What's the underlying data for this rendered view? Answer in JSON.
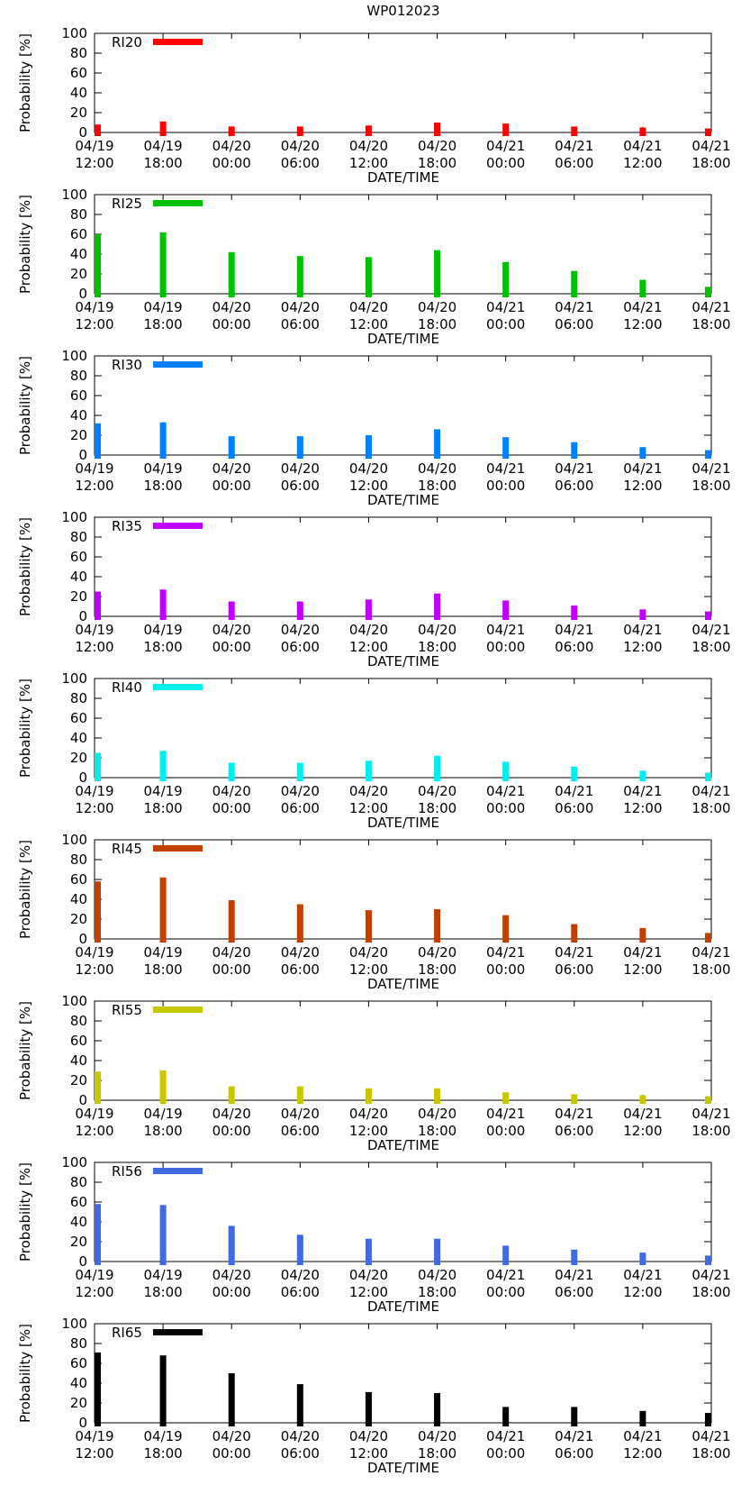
{
  "page_title": "WP012023",
  "chart_data": [
    {
      "type": "bar",
      "series_name": "RI20",
      "color": "#ff0000",
      "categories": [
        "04/19 12:00",
        "04/19 18:00",
        "04/20 00:00",
        "04/20 06:00",
        "04/20 12:00",
        "04/20 18:00",
        "04/21 00:00",
        "04/21 06:00",
        "04/21 12:00",
        "04/21 18:00"
      ],
      "values": [
        8,
        11,
        6,
        6,
        7,
        10,
        9,
        6,
        5,
        4
      ],
      "xlabel": "DATE/TIME",
      "ylabel": "Probability [%]",
      "ylim": [
        0,
        100
      ],
      "yticks": [
        0,
        20,
        40,
        60,
        80,
        100
      ],
      "legend": "top-left"
    },
    {
      "type": "bar",
      "series_name": "RI25",
      "color": "#00c000",
      "categories": [
        "04/19 12:00",
        "04/19 18:00",
        "04/20 00:00",
        "04/20 06:00",
        "04/20 12:00",
        "04/20 18:00",
        "04/21 00:00",
        "04/21 06:00",
        "04/21 12:00",
        "04/21 18:00"
      ],
      "values": [
        60,
        62,
        42,
        38,
        37,
        44,
        32,
        23,
        14,
        7
      ],
      "xlabel": "DATE/TIME",
      "ylabel": "Probability [%]",
      "ylim": [
        0,
        100
      ],
      "yticks": [
        0,
        20,
        40,
        60,
        80,
        100
      ],
      "legend": "top-left"
    },
    {
      "type": "bar",
      "series_name": "RI30",
      "color": "#0080ff",
      "categories": [
        "04/19 12:00",
        "04/19 18:00",
        "04/20 00:00",
        "04/20 06:00",
        "04/20 12:00",
        "04/20 18:00",
        "04/21 00:00",
        "04/21 06:00",
        "04/21 12:00",
        "04/21 18:00"
      ],
      "values": [
        32,
        33,
        19,
        19,
        20,
        26,
        18,
        13,
        8,
        5
      ],
      "xlabel": "DATE/TIME",
      "ylabel": "Probability [%]",
      "ylim": [
        0,
        100
      ],
      "yticks": [
        0,
        20,
        40,
        60,
        80,
        100
      ],
      "legend": "top-left"
    },
    {
      "type": "bar",
      "series_name": "RI35",
      "color": "#c000ff",
      "categories": [
        "04/19 12:00",
        "04/19 18:00",
        "04/20 00:00",
        "04/20 06:00",
        "04/20 12:00",
        "04/20 18:00",
        "04/21 00:00",
        "04/21 06:00",
        "04/21 12:00",
        "04/21 18:00"
      ],
      "values": [
        25,
        27,
        15,
        15,
        17,
        23,
        16,
        11,
        7,
        5
      ],
      "xlabel": "DATE/TIME",
      "ylabel": "Probability [%]",
      "ylim": [
        0,
        100
      ],
      "yticks": [
        0,
        20,
        40,
        60,
        80,
        100
      ],
      "legend": "top-left"
    },
    {
      "type": "bar",
      "series_name": "RI40",
      "color": "#00eeee",
      "categories": [
        "04/19 12:00",
        "04/19 18:00",
        "04/20 00:00",
        "04/20 06:00",
        "04/20 12:00",
        "04/20 18:00",
        "04/21 00:00",
        "04/21 06:00",
        "04/21 12:00",
        "04/21 18:00"
      ],
      "values": [
        25,
        27,
        15,
        15,
        17,
        22,
        16,
        11,
        7,
        5
      ],
      "xlabel": "DATE/TIME",
      "ylabel": "Probability [%]",
      "ylim": [
        0,
        100
      ],
      "yticks": [
        0,
        20,
        40,
        60,
        80,
        100
      ],
      "legend": "top-left"
    },
    {
      "type": "bar",
      "series_name": "RI45",
      "color": "#c04000",
      "categories": [
        "04/19 12:00",
        "04/19 18:00",
        "04/20 00:00",
        "04/20 06:00",
        "04/20 12:00",
        "04/20 18:00",
        "04/21 00:00",
        "04/21 06:00",
        "04/21 12:00",
        "04/21 18:00"
      ],
      "values": [
        58,
        62,
        39,
        35,
        29,
        30,
        24,
        15,
        11,
        6
      ],
      "xlabel": "DATE/TIME",
      "ylabel": "Probability [%]",
      "ylim": [
        0,
        100
      ],
      "yticks": [
        0,
        20,
        40,
        60,
        80,
        100
      ],
      "legend": "top-left"
    },
    {
      "type": "bar",
      "series_name": "RI55",
      "color": "#c8c800",
      "categories": [
        "04/19 12:00",
        "04/19 18:00",
        "04/20 00:00",
        "04/20 06:00",
        "04/20 12:00",
        "04/20 18:00",
        "04/21 00:00",
        "04/21 06:00",
        "04/21 12:00",
        "04/21 18:00"
      ],
      "values": [
        29,
        30,
        14,
        14,
        12,
        12,
        8,
        6,
        5,
        4
      ],
      "xlabel": "DATE/TIME",
      "ylabel": "Probability [%]",
      "ylim": [
        0,
        100
      ],
      "yticks": [
        0,
        20,
        40,
        60,
        80,
        100
      ],
      "legend": "top-left"
    },
    {
      "type": "bar",
      "series_name": "RI56",
      "color": "#4169e1",
      "categories": [
        "04/19 12:00",
        "04/19 18:00",
        "04/20 00:00",
        "04/20 06:00",
        "04/20 12:00",
        "04/20 18:00",
        "04/21 00:00",
        "04/21 06:00",
        "04/21 12:00",
        "04/21 18:00"
      ],
      "values": [
        58,
        57,
        36,
        27,
        23,
        23,
        16,
        12,
        9,
        6
      ],
      "xlabel": "DATE/TIME",
      "ylabel": "Probability [%]",
      "ylim": [
        0,
        100
      ],
      "yticks": [
        0,
        20,
        40,
        60,
        80,
        100
      ],
      "legend": "top-left"
    },
    {
      "type": "bar",
      "series_name": "RI65",
      "color": "#000000",
      "categories": [
        "04/19 12:00",
        "04/19 18:00",
        "04/20 00:00",
        "04/20 06:00",
        "04/20 12:00",
        "04/20 18:00",
        "04/21 00:00",
        "04/21 06:00",
        "04/21 12:00",
        "04/21 18:00"
      ],
      "values": [
        71,
        68,
        50,
        39,
        31,
        30,
        16,
        16,
        12,
        10
      ],
      "xlabel": "DATE/TIME",
      "ylabel": "Probability [%]",
      "ylim": [
        0,
        100
      ],
      "yticks": [
        0,
        20,
        40,
        60,
        80,
        100
      ],
      "legend": "top-left"
    }
  ]
}
